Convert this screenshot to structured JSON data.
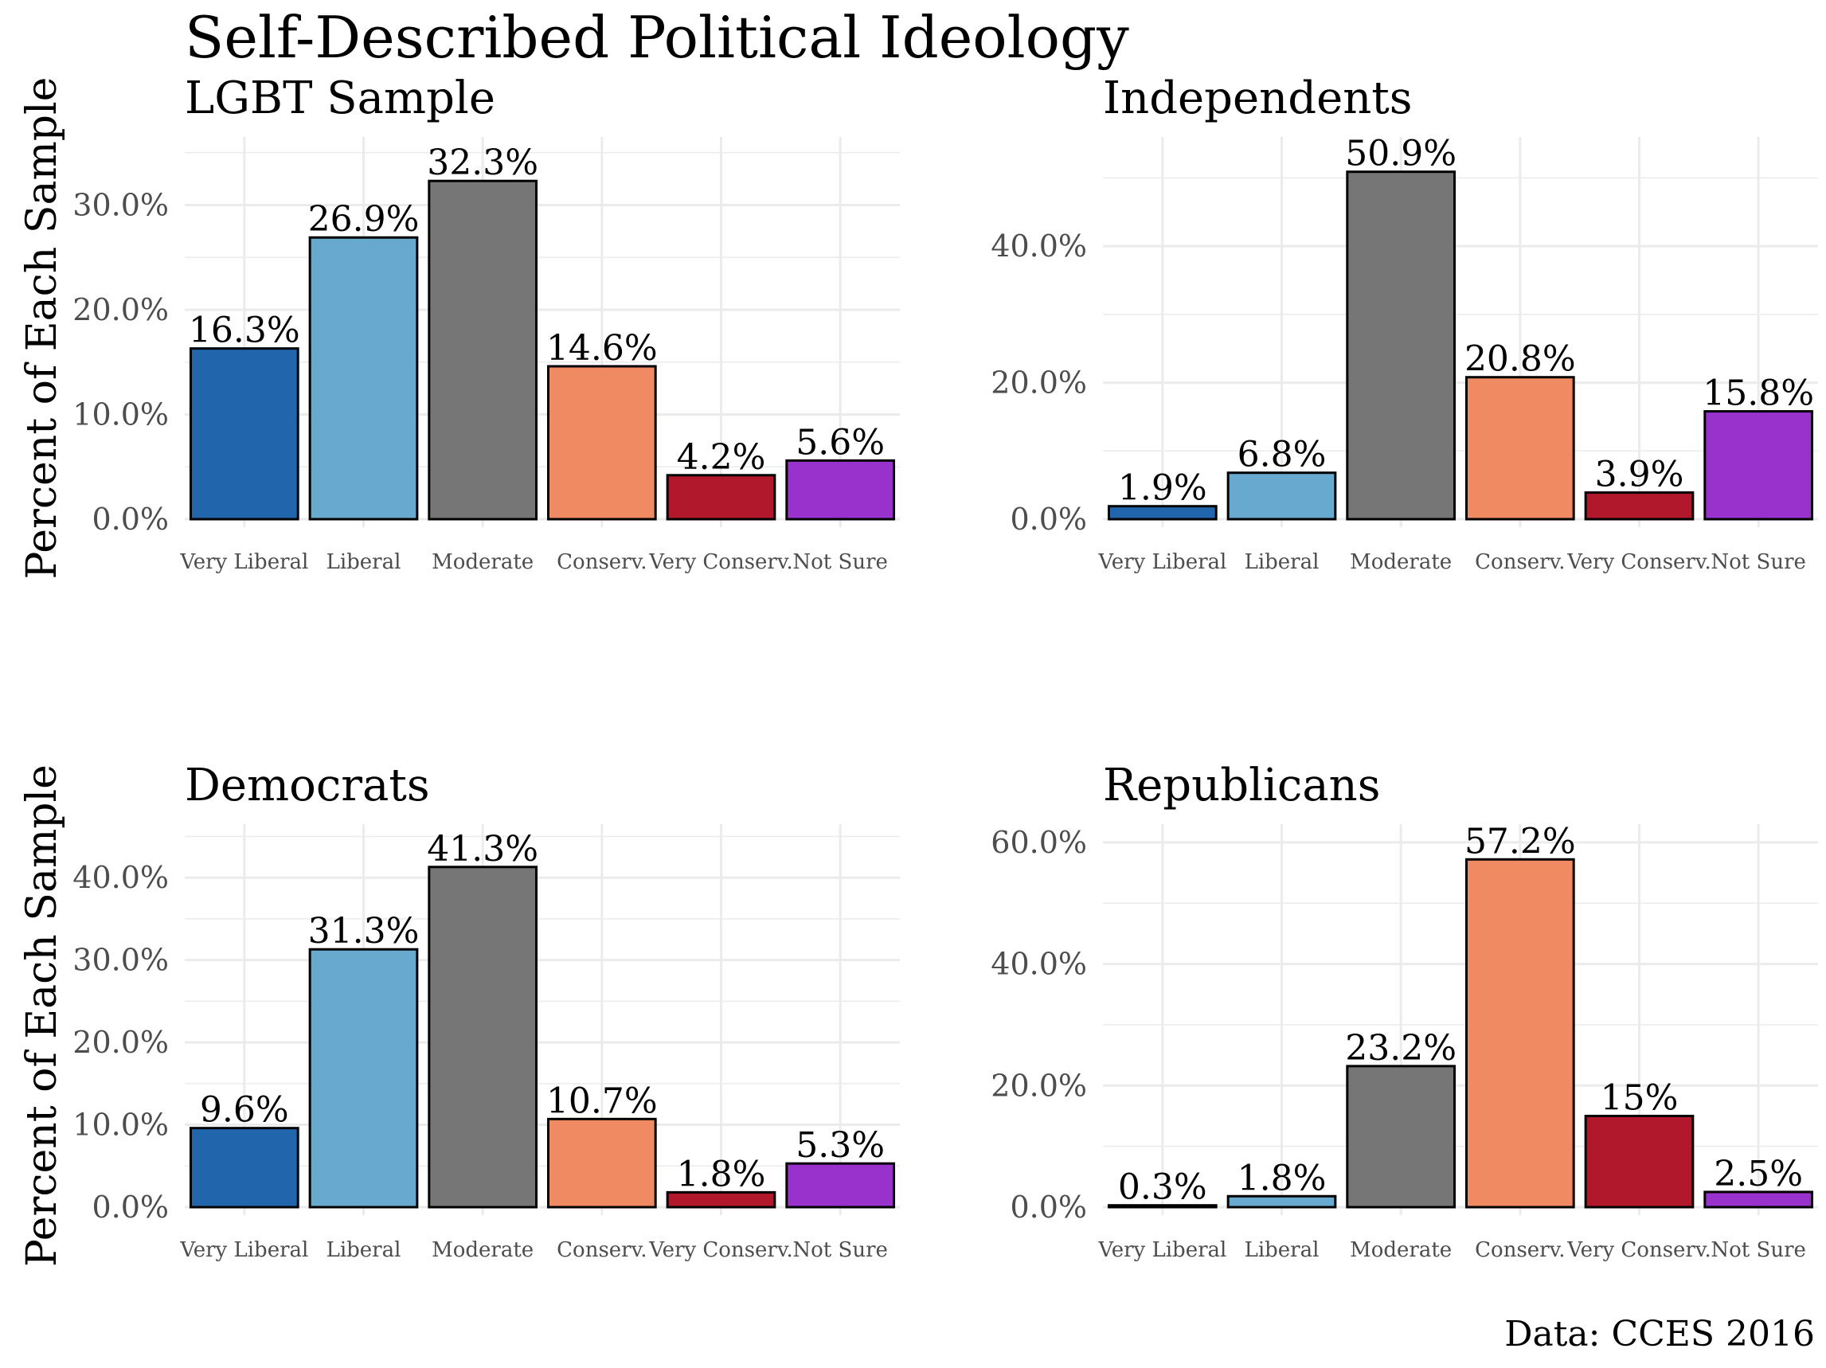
{
  "title": "Self-Described Political Ideology",
  "caption": "Data: CCES 2016",
  "chart_data": [
    {
      "type": "bar",
      "title": "LGBT Sample",
      "ylabel": "Percent of Each Sample",
      "xlabel": "",
      "categories": [
        "Very Liberal",
        "Liberal",
        "Moderate",
        "Conserv.",
        "Very Conserv.",
        "Not Sure"
      ],
      "values": [
        16.3,
        26.9,
        32.3,
        14.6,
        4.2,
        5.6
      ],
      "labels": [
        "16.3%",
        "26.9%",
        "32.3%",
        "14.6%",
        "4.2%",
        "5.6%"
      ],
      "ylim": [
        0,
        36.5
      ],
      "yticks": [
        0,
        10,
        20,
        30
      ],
      "ytick_labels": [
        "0.0%",
        "10.0%",
        "20.0%",
        "30.0%"
      ]
    },
    {
      "type": "bar",
      "title": "Independents",
      "ylabel": "",
      "xlabel": "",
      "categories": [
        "Very Liberal",
        "Liberal",
        "Moderate",
        "Conserv.",
        "Very Conserv.",
        "Not Sure"
      ],
      "values": [
        1.9,
        6.8,
        50.9,
        20.8,
        3.9,
        15.8
      ],
      "labels": [
        "1.9%",
        "6.8%",
        "50.9%",
        "20.8%",
        "3.9%",
        "15.8%"
      ],
      "ylim": [
        0,
        56
      ],
      "yticks": [
        0,
        20,
        40
      ],
      "ytick_labels": [
        "0.0%",
        "20.0%",
        "40.0%"
      ]
    },
    {
      "type": "bar",
      "title": "Democrats",
      "ylabel": "Percent of Each Sample",
      "xlabel": "",
      "categories": [
        "Very Liberal",
        "Liberal",
        "Moderate",
        "Conserv.",
        "Very Conserv.",
        "Not Sure"
      ],
      "values": [
        9.6,
        31.3,
        41.3,
        10.7,
        1.8,
        5.3
      ],
      "labels": [
        "9.6%",
        "31.3%",
        "41.3%",
        "10.7%",
        "1.8%",
        "5.3%"
      ],
      "ylim": [
        0,
        46.5
      ],
      "yticks": [
        0,
        10,
        20,
        30,
        40
      ],
      "ytick_labels": [
        "0.0%",
        "10.0%",
        "20.0%",
        "30.0%",
        "40.0%"
      ]
    },
    {
      "type": "bar",
      "title": "Republicans",
      "ylabel": "",
      "xlabel": "",
      "categories": [
        "Very Liberal",
        "Liberal",
        "Moderate",
        "Conserv.",
        "Very Conserv.",
        "Not Sure"
      ],
      "values": [
        0.3,
        1.8,
        23.2,
        57.2,
        15,
        2.5
      ],
      "labels": [
        "0.3%",
        "1.8%",
        "23.2%",
        "57.2%",
        "15%",
        "2.5%"
      ],
      "ylim": [
        0,
        63
      ],
      "yticks": [
        0,
        20,
        40,
        60
      ],
      "ytick_labels": [
        "0.0%",
        "20.0%",
        "40.0%",
        "60.0%"
      ]
    }
  ],
  "colors": {
    "categories": [
      "#2166ac",
      "#67a9cf",
      "#767676",
      "#ef8a62",
      "#b2182b",
      "#9932cc"
    ],
    "grid": "#ebebeb",
    "bar_outline": "#000000"
  }
}
